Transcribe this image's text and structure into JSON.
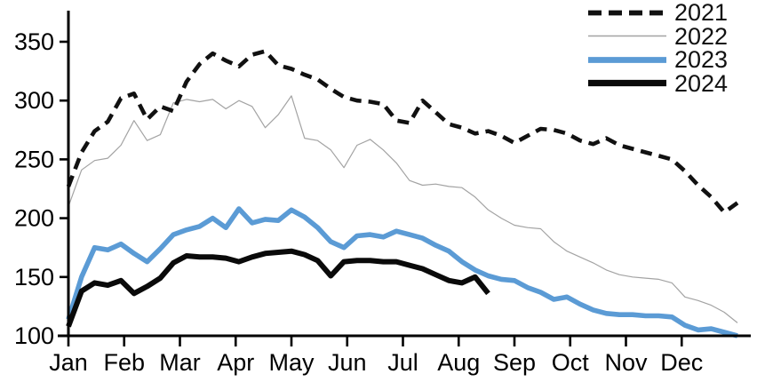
{
  "chart_data": {
    "type": "line",
    "title": "",
    "xlabel": "",
    "ylabel": "",
    "grid": false,
    "legend_position": "top-right",
    "x_unit": "weeks (52 per year, Jan through Dec)",
    "x_axis": {
      "months": [
        "Jan",
        "Feb",
        "Mar",
        "Apr",
        "May",
        "Jun",
        "Jul",
        "Aug",
        "Sep",
        "Oct",
        "Nov",
        "Dec"
      ]
    },
    "y_axis": {
      "ticks": [
        100,
        150,
        200,
        250,
        300,
        350
      ],
      "range": [
        100,
        350
      ]
    },
    "series": [
      {
        "name": "2021",
        "color": "#111111",
        "style": "dashed",
        "width": 4.6,
        "dash": "13 8",
        "values": [
          227,
          256,
          274,
          282,
          302,
          306,
          284,
          295,
          291,
          316,
          331,
          340,
          334,
          329,
          339,
          342,
          330,
          327,
          322,
          318,
          310,
          303,
          300,
          299,
          297,
          283,
          281,
          300,
          290,
          280,
          277,
          272,
          274,
          270,
          264,
          270,
          276,
          275,
          272,
          266,
          263,
          268,
          262,
          259,
          256,
          253,
          250,
          240,
          228,
          218,
          205,
          213
        ]
      },
      {
        "name": "2022",
        "color": "#a3a3a3",
        "style": "solid",
        "width": 1.2,
        "dash": "",
        "values": [
          210,
          241,
          249,
          251,
          262,
          283,
          266,
          271,
          298,
          301,
          299,
          301,
          293,
          300,
          295,
          277,
          288,
          304,
          268,
          266,
          258,
          243,
          262,
          267,
          258,
          247,
          232,
          228,
          229,
          227,
          226,
          218,
          207,
          200,
          194,
          192,
          191,
          180,
          172,
          167,
          162,
          156,
          152,
          150,
          149,
          148,
          145,
          133,
          130,
          126,
          120,
          111
        ]
      },
      {
        "name": "2023",
        "color": "#5B9BD5",
        "style": "solid",
        "width": 5.6,
        "dash": "",
        "values": [
          114,
          150,
          175,
          173,
          178,
          170,
          163,
          174,
          186,
          190,
          193,
          200,
          192,
          208,
          196,
          199,
          198,
          207,
          201,
          192,
          180,
          175,
          185,
          186,
          184,
          189,
          186,
          183,
          177,
          172,
          163,
          156,
          151,
          148,
          147,
          141,
          137,
          131,
          133,
          127,
          122,
          119,
          118,
          118,
          117,
          117,
          116,
          109,
          105,
          106,
          103,
          100
        ]
      },
      {
        "name": "2024",
        "color": "#0a0a0a",
        "style": "solid",
        "width": 6,
        "dash": "",
        "values": [
          108,
          138,
          145,
          143,
          147,
          136,
          142,
          149,
          162,
          168,
          167,
          167,
          166,
          163,
          167,
          170,
          171,
          172,
          169,
          164,
          151,
          163,
          164,
          164,
          163,
          163,
          160,
          157,
          152,
          147,
          145,
          150,
          136
        ]
      }
    ]
  },
  "legend": {
    "items": [
      "2021",
      "2022",
      "2023",
      "2024"
    ]
  }
}
